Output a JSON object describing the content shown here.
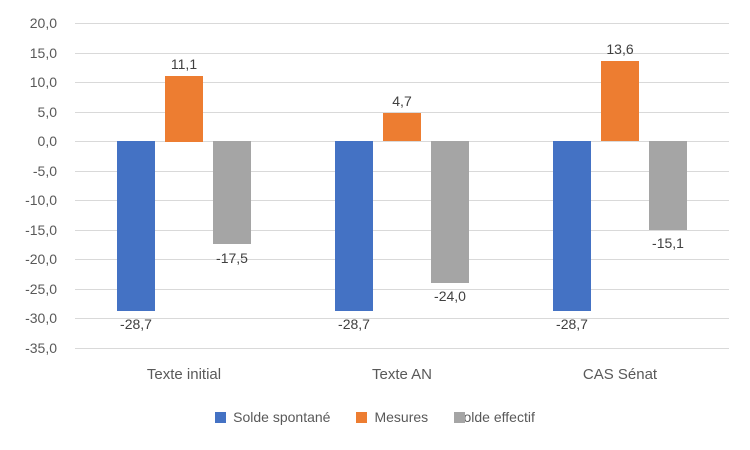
{
  "chart_data": {
    "type": "bar",
    "orientation": "vertical-grouped",
    "title": "",
    "xlabel": "",
    "ylabel": "",
    "categories": [
      "Texte initial",
      "Texte AN",
      "CAS Sénat"
    ],
    "series": [
      {
        "name": "Solde spontané",
        "color": "#4472C4",
        "pattern": "solid",
        "values": [
          -28.7,
          -28.7,
          -28.7
        ],
        "labels": [
          "-28,7",
          "-28,7",
          "-28,7"
        ]
      },
      {
        "name": "Mesures",
        "color": "#ED7D31",
        "pattern": "solid",
        "values": [
          11.1,
          4.7,
          13.6
        ],
        "labels": [
          "11,1",
          "4,7",
          "13,6"
        ]
      },
      {
        "name": "Solde effectif",
        "color": "#A5A5A5",
        "pattern": "speckle",
        "values": [
          -17.5,
          -24.0,
          -15.1
        ],
        "labels": [
          "-17,5",
          "-24,0",
          "-15,1"
        ]
      }
    ],
    "y_axis": {
      "min": -35,
      "max": 20,
      "step": 5,
      "tick_labels": [
        "20,0",
        "15,0",
        "10,0",
        "5,0",
        "0,0",
        "-5,0",
        "-10,0",
        "-15,0",
        "-20,0",
        "-25,0",
        "-30,0",
        "-35,0"
      ],
      "tick_values": [
        20,
        15,
        10,
        5,
        0,
        -5,
        -10,
        -15,
        -20,
        -25,
        -30,
        -35
      ]
    },
    "grid": true,
    "gridline_color": "#D9D9D9",
    "axis_text_color": "#595959",
    "data_label_color": "#404040",
    "legend": {
      "position": "bottom",
      "entries": [
        "Solde spontané",
        "Mesures",
        "Solde effectif"
      ]
    },
    "background_color": "#FFFFFF"
  }
}
